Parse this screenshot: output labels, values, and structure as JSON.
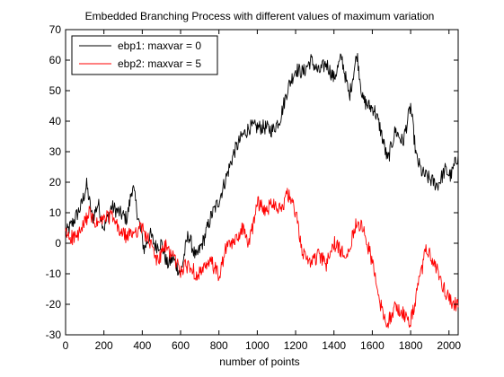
{
  "chart_data": {
    "type": "line",
    "title": "Embedded Branching Process with different values of maximum variation",
    "xlabel": "number of points",
    "ylabel": "",
    "xlim": [
      0,
      2048
    ],
    "ylim": [
      -30,
      70
    ],
    "xticks": [
      0,
      200,
      400,
      600,
      800,
      1000,
      1200,
      1400,
      1600,
      1800,
      2000
    ],
    "yticks": [
      -30,
      -20,
      -10,
      0,
      10,
      20,
      30,
      40,
      50,
      60,
      70
    ],
    "grid": false,
    "legend_position": "top-left",
    "series": [
      {
        "name": "ebp1: maxvar = 0",
        "color": "#000000",
        "x": [
          0,
          40,
          80,
          110,
          140,
          170,
          200,
          240,
          280,
          320,
          350,
          380,
          410,
          440,
          470,
          500,
          530,
          560,
          600,
          640,
          680,
          720,
          760,
          800,
          840,
          880,
          920,
          960,
          1000,
          1040,
          1080,
          1120,
          1160,
          1200,
          1240,
          1280,
          1320,
          1360,
          1400,
          1440,
          1480,
          1520,
          1550,
          1580,
          1610,
          1640,
          1680,
          1720,
          1760,
          1800,
          1830,
          1860,
          1900,
          1940,
          1980,
          2010,
          2048
        ],
        "y": [
          3,
          7,
          12,
          19,
          8,
          13,
          5,
          12,
          10,
          8,
          19,
          8,
          -2,
          3,
          -1,
          0,
          -7,
          -5,
          -10,
          3,
          -5,
          1,
          9,
          14,
          22,
          30,
          35,
          38,
          38,
          38,
          37,
          41,
          51,
          57,
          56,
          60,
          56,
          59,
          54,
          61,
          48,
          62,
          47,
          45,
          44,
          38,
          27,
          37,
          33,
          45,
          28,
          23,
          21,
          19,
          24,
          22,
          29
        ]
      },
      {
        "name": "ebp2: maxvar = 5",
        "color": "#ff0000",
        "x": [
          0,
          30,
          60,
          90,
          120,
          160,
          200,
          240,
          280,
          320,
          360,
          400,
          440,
          480,
          520,
          560,
          600,
          640,
          680,
          720,
          760,
          800,
          840,
          880,
          920,
          960,
          1000,
          1040,
          1080,
          1120,
          1160,
          1200,
          1240,
          1280,
          1320,
          1360,
          1400,
          1440,
          1480,
          1520,
          1560,
          1600,
          1640,
          1680,
          1720,
          1760,
          1800,
          1840,
          1880,
          1920,
          1960,
          2000,
          2048
        ],
        "y": [
          3,
          2,
          2,
          5,
          10,
          6,
          8,
          9,
          4,
          2,
          4,
          5,
          0,
          -6,
          -1,
          -4,
          -9,
          -7,
          -10,
          -9,
          -6,
          -11,
          -1,
          0,
          5,
          0,
          14,
          10,
          14,
          11,
          16,
          10,
          -4,
          -6,
          -4,
          -7,
          0,
          -3,
          -2,
          8,
          3,
          -6,
          -20,
          -26,
          -21,
          -23,
          -26,
          -14,
          -2,
          -6,
          -13,
          -18,
          -21
        ]
      }
    ]
  }
}
